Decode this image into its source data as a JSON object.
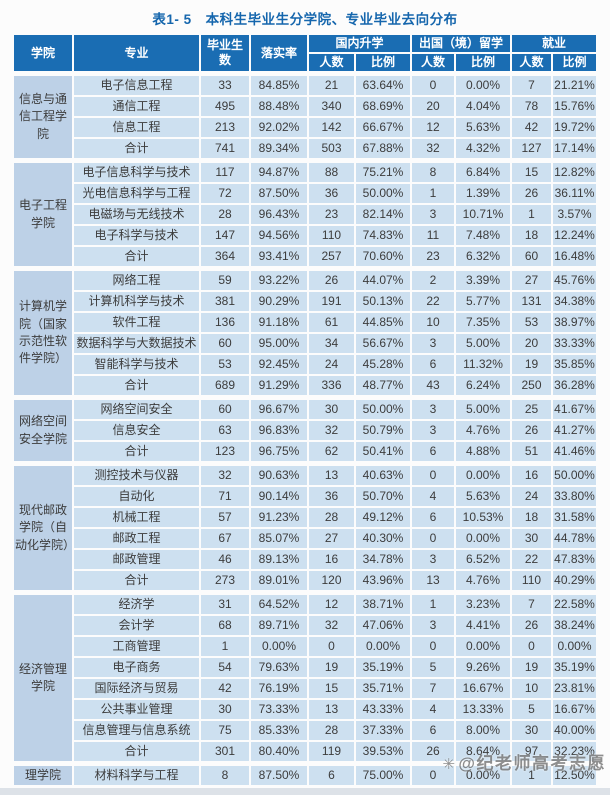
{
  "title": "表1- 5　本科生毕业生分学院、专业毕业去向分布",
  "colors": {
    "header_blue": "#1a6db3",
    "cell_light_blue": "#cde0f0",
    "college_cell_blue": "#bdd1e7",
    "title_blue": "#1566ad"
  },
  "watermark": {
    "icon": "✳",
    "text": "@纪老师高考志愿"
  },
  "table": {
    "headers": {
      "college": "学院",
      "major": "专业",
      "graduates": "毕业生数",
      "rate": "落实率",
      "groups": [
        {
          "label": "国内升学",
          "sub": [
            "人数",
            "比例"
          ]
        },
        {
          "label": "出国（境）留学",
          "sub": [
            "人数",
            "比例"
          ]
        },
        {
          "label": "就业",
          "sub": [
            "人数",
            "比例"
          ]
        }
      ]
    },
    "groups": [
      {
        "college": "信息与通信工程学院",
        "rows": [
          [
            "电子信息工程",
            "33",
            "84.85%",
            "21",
            "63.64%",
            "0",
            "0.00%",
            "7",
            "21.21%"
          ],
          [
            "通信工程",
            "495",
            "88.48%",
            "340",
            "68.69%",
            "20",
            "4.04%",
            "78",
            "15.76%"
          ],
          [
            "信息工程",
            "213",
            "92.02%",
            "142",
            "66.67%",
            "12",
            "5.63%",
            "42",
            "19.72%"
          ],
          [
            "合计",
            "741",
            "89.34%",
            "503",
            "67.88%",
            "32",
            "4.32%",
            "127",
            "17.14%"
          ]
        ]
      },
      {
        "college": "电子工程学院",
        "rows": [
          [
            "电子信息科学与技术",
            "117",
            "94.87%",
            "88",
            "75.21%",
            "8",
            "6.84%",
            "15",
            "12.82%"
          ],
          [
            "光电信息科学与工程",
            "72",
            "87.50%",
            "36",
            "50.00%",
            "1",
            "1.39%",
            "26",
            "36.11%"
          ],
          [
            "电磁场与无线技术",
            "28",
            "96.43%",
            "23",
            "82.14%",
            "3",
            "10.71%",
            "1",
            "3.57%"
          ],
          [
            "电子科学与技术",
            "147",
            "94.56%",
            "110",
            "74.83%",
            "11",
            "7.48%",
            "18",
            "12.24%"
          ],
          [
            "合计",
            "364",
            "93.41%",
            "257",
            "70.60%",
            "23",
            "6.32%",
            "60",
            "16.48%"
          ]
        ]
      },
      {
        "college": "计算机学院（国家示范性软件学院）",
        "rows": [
          [
            "网络工程",
            "59",
            "93.22%",
            "26",
            "44.07%",
            "2",
            "3.39%",
            "27",
            "45.76%"
          ],
          [
            "计算机科学与技术",
            "381",
            "90.29%",
            "191",
            "50.13%",
            "22",
            "5.77%",
            "131",
            "34.38%"
          ],
          [
            "软件工程",
            "136",
            "91.18%",
            "61",
            "44.85%",
            "10",
            "7.35%",
            "53",
            "38.97%"
          ],
          [
            "数据科学与大数据技术",
            "60",
            "95.00%",
            "34",
            "56.67%",
            "3",
            "5.00%",
            "20",
            "33.33%"
          ],
          [
            "智能科学与技术",
            "53",
            "92.45%",
            "24",
            "45.28%",
            "6",
            "11.32%",
            "19",
            "35.85%"
          ],
          [
            "合计",
            "689",
            "91.29%",
            "336",
            "48.77%",
            "43",
            "6.24%",
            "250",
            "36.28%"
          ]
        ]
      },
      {
        "college": "网络空间安全学院",
        "rows": [
          [
            "网络空间安全",
            "60",
            "96.67%",
            "30",
            "50.00%",
            "3",
            "5.00%",
            "25",
            "41.67%"
          ],
          [
            "信息安全",
            "63",
            "96.83%",
            "32",
            "50.79%",
            "3",
            "4.76%",
            "26",
            "41.27%"
          ],
          [
            "合计",
            "123",
            "96.75%",
            "62",
            "50.41%",
            "6",
            "4.88%",
            "51",
            "41.46%"
          ]
        ]
      },
      {
        "college": "现代邮政学院（自动化学院）",
        "rows": [
          [
            "测控技术与仪器",
            "32",
            "90.63%",
            "13",
            "40.63%",
            "0",
            "0.00%",
            "16",
            "50.00%"
          ],
          [
            "自动化",
            "71",
            "90.14%",
            "36",
            "50.70%",
            "4",
            "5.63%",
            "24",
            "33.80%"
          ],
          [
            "机械工程",
            "57",
            "91.23%",
            "28",
            "49.12%",
            "6",
            "10.53%",
            "18",
            "31.58%"
          ],
          [
            "邮政工程",
            "67",
            "85.07%",
            "27",
            "40.30%",
            "0",
            "0.00%",
            "30",
            "44.78%"
          ],
          [
            "邮政管理",
            "46",
            "89.13%",
            "16",
            "34.78%",
            "3",
            "6.52%",
            "22",
            "47.83%"
          ],
          [
            "合计",
            "273",
            "89.01%",
            "120",
            "43.96%",
            "13",
            "4.76%",
            "110",
            "40.29%"
          ]
        ]
      },
      {
        "college": "经济管理学院",
        "rows": [
          [
            "经济学",
            "31",
            "64.52%",
            "12",
            "38.71%",
            "1",
            "3.23%",
            "7",
            "22.58%"
          ],
          [
            "会计学",
            "68",
            "89.71%",
            "32",
            "47.06%",
            "3",
            "4.41%",
            "26",
            "38.24%"
          ],
          [
            "工商管理",
            "1",
            "0.00%",
            "0",
            "0.00%",
            "0",
            "0.00%",
            "0",
            "0.00%"
          ],
          [
            "电子商务",
            "54",
            "79.63%",
            "19",
            "35.19%",
            "5",
            "9.26%",
            "19",
            "35.19%"
          ],
          [
            "国际经济与贸易",
            "42",
            "76.19%",
            "15",
            "35.71%",
            "7",
            "16.67%",
            "10",
            "23.81%"
          ],
          [
            "公共事业管理",
            "30",
            "73.33%",
            "13",
            "43.33%",
            "4",
            "13.33%",
            "5",
            "16.67%"
          ],
          [
            "信息管理与信息系统",
            "75",
            "85.33%",
            "28",
            "37.33%",
            "6",
            "8.00%",
            "30",
            "40.00%"
          ],
          [
            "合计",
            "301",
            "80.40%",
            "119",
            "39.53%",
            "26",
            "8.64%",
            "97",
            "32.23%"
          ]
        ]
      },
      {
        "college": "理学院",
        "rows": [
          [
            "材料科学与工程",
            "8",
            "87.50%",
            "6",
            "75.00%",
            "0",
            "0.00%",
            "1",
            "12.50%"
          ]
        ]
      }
    ]
  }
}
